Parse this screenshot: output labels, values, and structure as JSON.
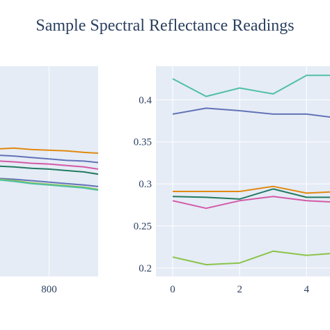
{
  "title": "Sample Spectral Reflectance Readings",
  "colors": {
    "plot_bg": "#e5ecf6",
    "grid": "#ffffff",
    "text": "#2a3f5f"
  },
  "chart_data": [
    {
      "type": "line",
      "title": "",
      "xlabel": "",
      "ylabel": "",
      "xlim": [
        660,
        940
      ],
      "ylim": [
        0.17,
        0.46
      ],
      "x_ticks": [
        800
      ],
      "x_tick_labels": [
        "800"
      ],
      "y_ticks": [],
      "grid": true,
      "series": [
        {
          "color": "#e1890f",
          "x": [
            660,
            700,
            750,
            800,
            850,
            900,
            940
          ],
          "values": [
            0.346,
            0.347,
            0.345,
            0.344,
            0.343,
            0.341,
            0.34
          ]
        },
        {
          "color": "#6272b7",
          "x": [
            660,
            700,
            750,
            800,
            850,
            900,
            940
          ],
          "values": [
            0.337,
            0.336,
            0.334,
            0.332,
            0.33,
            0.329,
            0.327
          ]
        },
        {
          "color": "#d459a7",
          "x": [
            660,
            700,
            750,
            800,
            850,
            900,
            940
          ],
          "values": [
            0.329,
            0.328,
            0.326,
            0.325,
            0.323,
            0.321,
            0.318
          ]
        },
        {
          "color": "#237a60",
          "x": [
            660,
            700,
            750,
            800,
            850,
            900,
            940
          ],
          "values": [
            0.322,
            0.321,
            0.319,
            0.318,
            0.316,
            0.314,
            0.311
          ]
        },
        {
          "color": "#6272b7",
          "x": [
            660,
            700,
            750,
            800,
            850,
            900,
            940
          ],
          "values": [
            0.305,
            0.304,
            0.302,
            0.3,
            0.298,
            0.296,
            0.294
          ]
        },
        {
          "color": "#8cc34a",
          "x": [
            660,
            700,
            750,
            800,
            850,
            900,
            940
          ],
          "values": [
            0.304,
            0.302,
            0.299,
            0.297,
            0.295,
            0.293,
            0.29
          ]
        },
        {
          "color": "#50bfa5",
          "x": [
            660,
            700,
            750,
            800,
            850,
            900,
            940
          ],
          "values": [
            0.303,
            0.301,
            0.298,
            0.296,
            0.294,
            0.292,
            0.289
          ]
        }
      ]
    },
    {
      "type": "line",
      "title": "",
      "xlabel": "",
      "ylabel": "",
      "xlim": [
        -0.5,
        4.7
      ],
      "ylim": [
        0.19,
        0.44
      ],
      "x_ticks": [
        0,
        2,
        4
      ],
      "x_tick_labels": [
        "0",
        "2",
        "4"
      ],
      "y_ticks": [
        0.2,
        0.25,
        0.3,
        0.35,
        0.4
      ],
      "y_tick_labels": [
        "0.2",
        "0.25",
        "0.3",
        "0.35",
        "0.4"
      ],
      "grid": true,
      "series": [
        {
          "color": "#50bfa5",
          "x": [
            0,
            1,
            2,
            3,
            4,
            5
          ],
          "values": [
            0.425,
            0.404,
            0.414,
            0.407,
            0.429,
            0.429
          ]
        },
        {
          "color": "#6272b7",
          "x": [
            0,
            1,
            2,
            3,
            4,
            5
          ],
          "values": [
            0.383,
            0.39,
            0.387,
            0.383,
            0.383,
            0.378
          ]
        },
        {
          "color": "#e1890f",
          "x": [
            0,
            1,
            2,
            3,
            4,
            5
          ],
          "values": [
            0.291,
            0.291,
            0.291,
            0.297,
            0.289,
            0.291
          ]
        },
        {
          "color": "#237a60",
          "x": [
            0,
            1,
            2,
            3,
            4,
            5
          ],
          "values": [
            0.285,
            0.284,
            0.282,
            0.294,
            0.284,
            0.284
          ]
        },
        {
          "color": "#d459a7",
          "x": [
            0,
            1,
            2,
            3,
            4,
            5
          ],
          "values": [
            0.28,
            0.271,
            0.28,
            0.285,
            0.28,
            0.278
          ]
        },
        {
          "color": "#8cc34a",
          "x": [
            0,
            1,
            2,
            3,
            4,
            5
          ],
          "values": [
            0.213,
            0.204,
            0.206,
            0.22,
            0.215,
            0.218
          ]
        }
      ]
    }
  ]
}
